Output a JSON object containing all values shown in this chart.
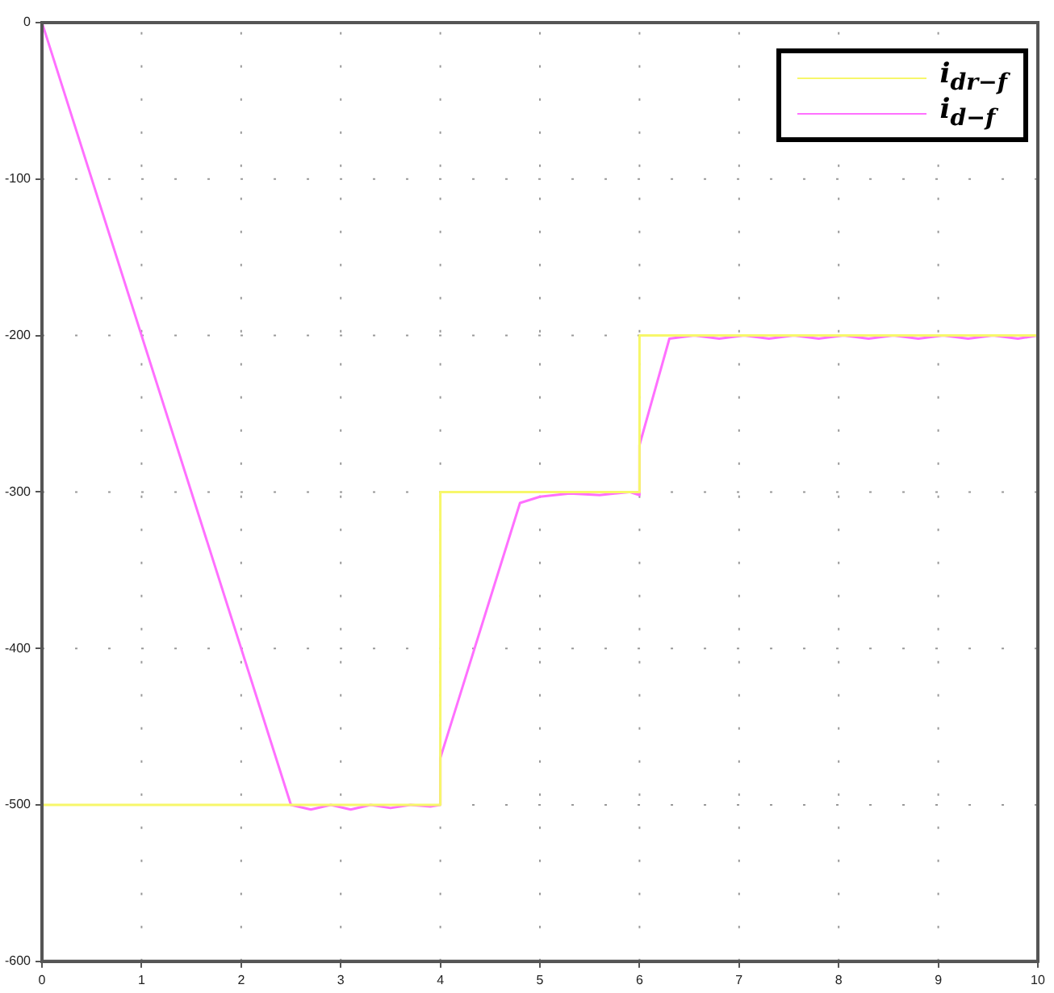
{
  "chart_data": {
    "type": "line",
    "xlim": [
      0,
      10
    ],
    "xticks": [
      0,
      1,
      2,
      3,
      4,
      5,
      6,
      7,
      8,
      9,
      10
    ],
    "ylim": [
      -600,
      0
    ],
    "yticks": [
      -600,
      -500,
      -400,
      -300,
      -200,
      -100,
      0
    ],
    "grid": true,
    "legend": "top right",
    "marker": "none",
    "series": [
      {
        "name": "i$_{dr−f}$",
        "type": "step",
        "color": "#f7f76a",
        "x": [
          0,
          4,
          6,
          10
        ],
        "values": [
          -500,
          -300,
          -200,
          -200
        ]
      },
      {
        "name": "i$_{d−f}$",
        "color": "#ff70ff",
        "x": [
          0,
          2.5,
          2.7,
          2.9,
          3.1,
          3.3,
          3.5,
          3.7,
          3.9,
          4,
          4,
          4.8,
          5.0,
          5.3,
          5.6,
          5.9,
          6,
          6,
          6.3,
          6.55,
          6.8,
          7.05,
          7.3,
          7.55,
          7.8,
          8.05,
          8.3,
          8.55,
          8.8,
          9.05,
          9.3,
          9.55,
          9.8,
          10
        ],
        "values": [
          0,
          -500,
          -503,
          -500,
          -503,
          -500,
          -502,
          -500,
          -501,
          -500,
          -470,
          -307,
          -303,
          -301,
          -302,
          -300,
          -302,
          -270,
          -202,
          -200,
          -202,
          -200,
          -202,
          -200,
          -202,
          -200,
          -202,
          -200,
          -202,
          -200,
          -202,
          -200,
          -202,
          -200
        ]
      }
    ]
  }
}
